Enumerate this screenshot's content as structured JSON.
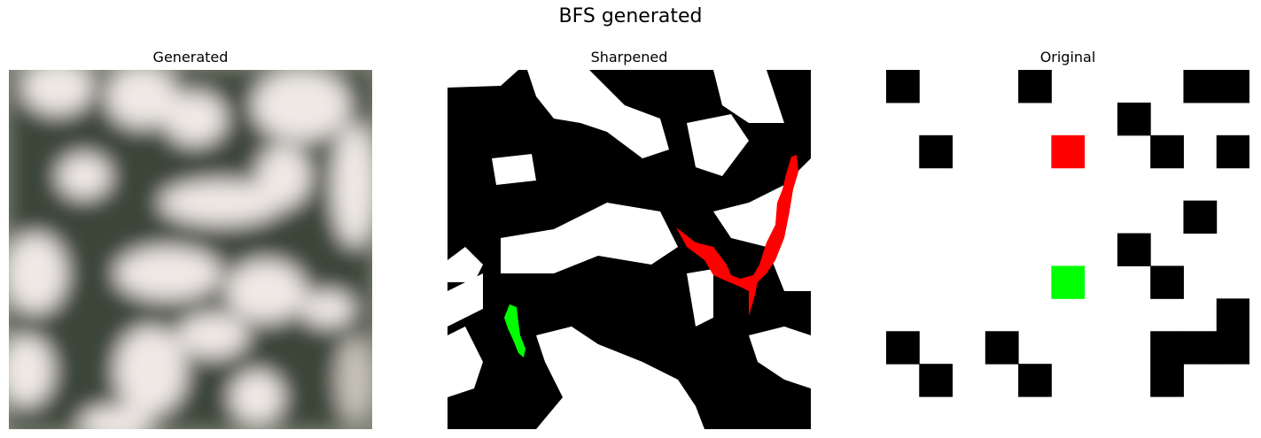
{
  "figure": {
    "title": "BFS generated"
  },
  "panels": [
    {
      "title": "Generated"
    },
    {
      "title": "Sharpened"
    },
    {
      "title": "Original"
    }
  ],
  "colors": {
    "wall": "#000000",
    "open": "#ffffff",
    "start": "#00ff00",
    "goal": "#ff0000",
    "generated_dark": "#2b372e",
    "generated_light": "#ede6e6"
  },
  "original_grid": {
    "rows": 11,
    "cols": 11,
    "walls": [
      [
        0,
        0
      ],
      [
        0,
        4
      ],
      [
        0,
        9
      ],
      [
        0,
        10
      ],
      [
        1,
        7
      ],
      [
        2,
        1
      ],
      [
        2,
        8
      ],
      [
        2,
        10
      ],
      [
        4,
        9
      ],
      [
        5,
        7
      ],
      [
        6,
        8
      ],
      [
        7,
        10
      ],
      [
        8,
        0
      ],
      [
        8,
        3
      ],
      [
        8,
        8
      ],
      [
        8,
        9
      ],
      [
        8,
        10
      ],
      [
        9,
        1
      ],
      [
        9,
        4
      ],
      [
        9,
        8
      ]
    ],
    "goal": [
      2,
      5
    ],
    "start": [
      6,
      5
    ]
  }
}
